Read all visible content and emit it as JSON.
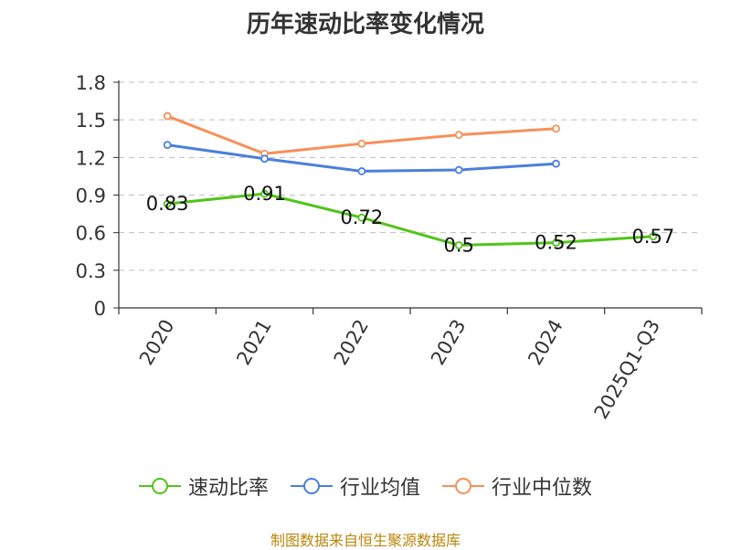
{
  "chart_data": {
    "type": "line",
    "title": "历年速动比率变化情况",
    "categories": [
      "2020",
      "2021",
      "2022",
      "2023",
      "2024",
      "2025Q1-Q3"
    ],
    "ylim": [
      0,
      1.8
    ],
    "yticks": [
      0,
      0.3,
      0.6,
      0.9,
      1.2,
      1.5,
      1.8
    ],
    "ytick_labels": [
      "0",
      "0.3",
      "0.6",
      "0.9",
      "1.2",
      "1.5",
      "1.8"
    ],
    "grid": true,
    "series": [
      {
        "name": "速动比率",
        "color": "#52c41a",
        "values": [
          0.83,
          0.91,
          0.72,
          0.5,
          0.52,
          0.57
        ],
        "labels": [
          "0.83",
          "0.91",
          "0.72",
          "0.5",
          "0.52",
          "0.57"
        ],
        "show_labels": true
      },
      {
        "name": "行业均值",
        "color": "#4a7fdc",
        "values": [
          1.3,
          1.19,
          1.09,
          1.1,
          1.15,
          null
        ],
        "show_labels": false
      },
      {
        "name": "行业中位数",
        "color": "#f5915a",
        "values": [
          1.53,
          1.23,
          1.31,
          1.38,
          1.43,
          null
        ],
        "show_labels": false
      }
    ],
    "legend_position": "bottom"
  },
  "source": "制图数据来自恒生聚源数据库"
}
